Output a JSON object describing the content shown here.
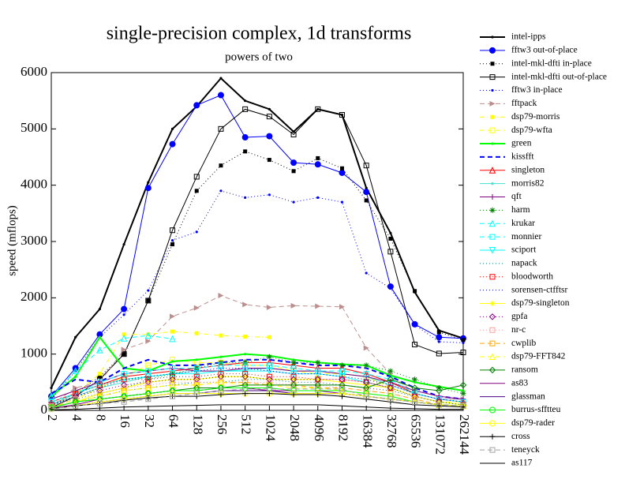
{
  "chart_data": {
    "type": "line",
    "title": "single-precision complex, 1d transforms",
    "subtitle": "powers of two",
    "y_label": "speed (mflops)",
    "categories": [
      "2",
      "4",
      "8",
      "16",
      "32",
      "64",
      "128",
      "256",
      "512",
      "1024",
      "2048",
      "4096",
      "8192",
      "16384",
      "32768",
      "65536",
      "131072",
      "262144"
    ],
    "ylim": [
      0,
      6000
    ],
    "yticks": [
      0,
      1000,
      2000,
      3000,
      4000,
      5000,
      6000
    ],
    "series": [
      {
        "name": "intel-ipps",
        "color": "#000000",
        "dash": "solid",
        "width": 2,
        "marker": "dot",
        "values": [
          400,
          1300,
          1800,
          2950,
          4050,
          5000,
          5400,
          5900,
          5500,
          5350,
          4950,
          5350,
          5250,
          3950,
          3150,
          2100,
          1420,
          1280
        ]
      },
      {
        "name": "fftw3 out-of-place",
        "color": "#0000ff",
        "dash": "solid",
        "width": 1,
        "marker": "circle-filled",
        "values": [
          250,
          750,
          1350,
          1800,
          3950,
          4730,
          5420,
          5600,
          4850,
          4870,
          4400,
          4370,
          4220,
          3880,
          2200,
          1530,
          1300,
          1280
        ]
      },
      {
        "name": "intel-mkl-dfti in-place",
        "color": "#000000",
        "dash": "dotted",
        "width": 1,
        "marker": "square-filled",
        "values": [
          100,
          300,
          600,
          1000,
          1950,
          2950,
          3900,
          4350,
          4600,
          4450,
          4250,
          4480,
          4300,
          3730,
          3050,
          2120,
          1390,
          1250
        ]
      },
      {
        "name": "intel-mkl-dfti out-of-place",
        "color": "#000000",
        "dash": "solid",
        "width": 1,
        "marker": "square-open",
        "values": [
          50,
          250,
          550,
          1000,
          1950,
          3200,
          4150,
          5000,
          5350,
          5220,
          4900,
          5350,
          5250,
          4350,
          2820,
          1170,
          1010,
          1030
        ]
      },
      {
        "name": "fftw3 in-place",
        "color": "#0000ff",
        "dash": "dotted",
        "width": 1,
        "marker": "dot",
        "values": [
          200,
          700,
          1300,
          1700,
          2130,
          3020,
          3170,
          3900,
          3780,
          3830,
          3700,
          3780,
          3700,
          2440,
          2170,
          1520,
          1220,
          1200
        ]
      },
      {
        "name": "fftpack",
        "color": "#bc8f8f",
        "dash": "dashed",
        "width": 1,
        "marker": "triangle-filled",
        "values": [
          100,
          400,
          500,
          1080,
          1230,
          1670,
          1820,
          2040,
          1880,
          1830,
          1860,
          1850,
          1840,
          1110,
          650,
          300,
          200,
          200
        ]
      },
      {
        "name": "dsp79-morris",
        "color": "#ffff00",
        "dash": "dash-dot",
        "width": 1,
        "marker": "square-filled",
        "values": [
          80,
          300,
          650,
          1350,
          1350,
          1400,
          1370,
          1330,
          1310,
          1300,
          null,
          null,
          null,
          null,
          null,
          null,
          null,
          null
        ]
      },
      {
        "name": "dsp79-wfta",
        "color": "#ffff00",
        "dash": "dashed",
        "width": 1,
        "marker": "square-open",
        "values": [
          50,
          200,
          400,
          600,
          800,
          900,
          850,
          850,
          800,
          800,
          700,
          650,
          650,
          600,
          400,
          250,
          150,
          150
        ]
      },
      {
        "name": "green",
        "color": "#00ff00",
        "dash": "solid",
        "width": 2,
        "marker": "dot",
        "values": [
          250,
          600,
          1300,
          750,
          700,
          870,
          900,
          950,
          1000,
          970,
          900,
          850,
          820,
          800,
          620,
          500,
          420,
          350
        ]
      },
      {
        "name": "kissfft",
        "color": "#0000ff",
        "dash": "dashed",
        "width": 2,
        "marker": "none",
        "values": [
          300,
          550,
          500,
          750,
          900,
          800,
          800,
          850,
          900,
          900,
          850,
          800,
          800,
          750,
          600,
          400,
          250,
          200
        ]
      },
      {
        "name": "singleton",
        "color": "#ff0000",
        "dash": "solid",
        "width": 1,
        "marker": "triangle-open",
        "values": [
          150,
          300,
          450,
          600,
          650,
          700,
          750,
          800,
          850,
          850,
          800,
          750,
          750,
          650,
          500,
          300,
          200,
          150
        ]
      },
      {
        "name": "morris82",
        "color": "#40e0d0",
        "dash": "solid",
        "width": 1,
        "marker": "dot",
        "values": [
          100,
          250,
          400,
          500,
          600,
          650,
          700,
          700,
          720,
          750,
          700,
          700,
          650,
          600,
          450,
          300,
          200,
          150
        ]
      },
      {
        "name": "qft",
        "color": "#800080",
        "dash": "solid",
        "width": 1,
        "marker": "plus",
        "values": [
          200,
          350,
          500,
          650,
          700,
          750,
          700,
          700,
          750,
          750,
          700,
          700,
          650,
          600,
          500,
          350,
          250,
          200
        ]
      },
      {
        "name": "harm",
        "color": "#008000",
        "dash": "dotted",
        "width": 1,
        "marker": "star",
        "values": [
          100,
          200,
          300,
          400,
          550,
          650,
          750,
          850,
          850,
          950,
          850,
          850,
          800,
          800,
          700,
          550,
          400,
          300
        ]
      },
      {
        "name": "krukar",
        "color": "#00ffff",
        "dash": "dashed",
        "width": 1,
        "marker": "triangle-open",
        "values": [
          250,
          700,
          1070,
          1280,
          1330,
          1270,
          null,
          null,
          null,
          null,
          null,
          null,
          null,
          null,
          null,
          null,
          null,
          null
        ]
      },
      {
        "name": "monnier",
        "color": "#00ffff",
        "dash": "dashed",
        "width": 1,
        "marker": "square-open",
        "values": [
          150,
          300,
          500,
          650,
          700,
          750,
          750,
          800,
          800,
          800,
          750,
          700,
          700,
          650,
          550,
          300,
          200,
          150
        ]
      },
      {
        "name": "sciport",
        "color": "#00ffff",
        "dash": "solid",
        "width": 1,
        "marker": "triangle-down",
        "values": [
          100,
          300,
          450,
          550,
          600,
          650,
          650,
          700,
          700,
          700,
          650,
          650,
          600,
          500,
          400,
          250,
          150,
          100
        ]
      },
      {
        "name": "napack",
        "color": "#008080",
        "dash": "dotted",
        "width": 1,
        "marker": "none",
        "values": [
          50,
          150,
          250,
          350,
          400,
          450,
          500,
          500,
          550,
          550,
          500,
          500,
          450,
          400,
          350,
          250,
          150,
          100
        ]
      },
      {
        "name": "bloodworth",
        "color": "#ff0000",
        "dash": "dotted",
        "width": 1,
        "marker": "square-open",
        "values": [
          100,
          300,
          450,
          550,
          550,
          600,
          600,
          650,
          650,
          600,
          600,
          550,
          550,
          500,
          400,
          250,
          150,
          100
        ]
      },
      {
        "name": "sorensen-ctfftsr",
        "color": "#0000cd",
        "dash": "dotted",
        "width": 1,
        "marker": "none",
        "values": [
          80,
          250,
          400,
          550,
          600,
          650,
          700,
          750,
          750,
          700,
          650,
          650,
          600,
          550,
          450,
          300,
          200,
          150
        ]
      },
      {
        "name": "dsp79-singleton",
        "color": "#ffff00",
        "dash": "solid",
        "width": 1,
        "marker": "star",
        "values": [
          50,
          150,
          300,
          400,
          500,
          550,
          550,
          600,
          600,
          550,
          550,
          550,
          500,
          450,
          400,
          250,
          150,
          100
        ]
      },
      {
        "name": "gpfa",
        "color": "#800080",
        "dash": "dotted",
        "width": 1,
        "marker": "diamond-open",
        "values": [
          100,
          250,
          350,
          450,
          500,
          550,
          550,
          600,
          600,
          550,
          550,
          550,
          550,
          500,
          400,
          250,
          150,
          100
        ]
      },
      {
        "name": "nr-c",
        "color": "#f4a0a0",
        "dash": "dotted",
        "width": 1,
        "marker": "square-open",
        "values": [
          80,
          200,
          300,
          400,
          450,
          500,
          500,
          500,
          500,
          500,
          450,
          450,
          400,
          350,
          300,
          200,
          100,
          80
        ]
      },
      {
        "name": "cwplib",
        "color": "#ffa500",
        "dash": "dashed",
        "width": 1,
        "marker": "square-open",
        "values": [
          60,
          150,
          250,
          350,
          400,
          450,
          450,
          500,
          500,
          450,
          450,
          400,
          400,
          350,
          300,
          200,
          100,
          80
        ]
      },
      {
        "name": "dsp79-FFT842",
        "color": "#ffff00",
        "dash": "dashed",
        "width": 1,
        "marker": "triangle-open",
        "values": [
          50,
          150,
          250,
          350,
          400,
          450,
          450,
          500,
          450,
          450,
          400,
          400,
          350,
          300,
          250,
          150,
          100,
          80
        ]
      },
      {
        "name": "ransom",
        "color": "#008000",
        "dash": "solid",
        "width": 1,
        "marker": "diamond-open",
        "values": [
          50,
          150,
          200,
          250,
          300,
          350,
          400,
          400,
          450,
          450,
          450,
          450,
          450,
          400,
          550,
          400,
          350,
          450
        ]
      },
      {
        "name": "as83",
        "color": "#800080",
        "dash": "solid",
        "width": 1,
        "marker": "none",
        "values": [
          40,
          100,
          200,
          250,
          300,
          350,
          350,
          400,
          400,
          350,
          350,
          350,
          300,
          250,
          200,
          150,
          100,
          80
        ]
      },
      {
        "name": "glassman",
        "color": "#4b0082",
        "dash": "solid",
        "width": 1,
        "marker": "none",
        "values": [
          40,
          80,
          150,
          200,
          250,
          300,
          300,
          350,
          350,
          350,
          300,
          300,
          300,
          250,
          200,
          150,
          100,
          80
        ]
      },
      {
        "name": "burrus-sfftteu",
        "color": "#00ff00",
        "dash": "solid",
        "width": 1,
        "marker": "circle-open",
        "values": [
          50,
          150,
          200,
          250,
          300,
          350,
          350,
          400,
          400,
          400,
          350,
          350,
          350,
          300,
          250,
          150,
          100,
          80
        ]
      },
      {
        "name": "dsp79-rader",
        "color": "#ffff00",
        "dash": "solid",
        "width": 1,
        "marker": "circle-open",
        "values": [
          30,
          80,
          150,
          200,
          250,
          300,
          300,
          300,
          300,
          300,
          300,
          300,
          300,
          250,
          200,
          150,
          100,
          80
        ]
      },
      {
        "name": "cross",
        "color": "#000000",
        "dash": "solid",
        "width": 1,
        "marker": "plus",
        "values": [
          30,
          80,
          120,
          180,
          220,
          250,
          250,
          280,
          300,
          300,
          280,
          280,
          250,
          200,
          150,
          100,
          80,
          60
        ]
      },
      {
        "name": "teneyck",
        "color": "#a0a0a0",
        "dash": "dashed",
        "width": 1,
        "marker": "square-open",
        "values": [
          30,
          80,
          120,
          150,
          200,
          250,
          300,
          350,
          380,
          380,
          380,
          380,
          380,
          250,
          200,
          150,
          100,
          80
        ]
      },
      {
        "name": "as117",
        "color": "#000000",
        "dash": "solid",
        "width": 1,
        "marker": "none",
        "values": [
          10,
          20,
          40,
          60,
          70,
          80,
          90,
          100,
          100,
          100,
          100,
          100,
          80,
          60,
          40,
          30,
          20,
          20
        ]
      }
    ]
  }
}
